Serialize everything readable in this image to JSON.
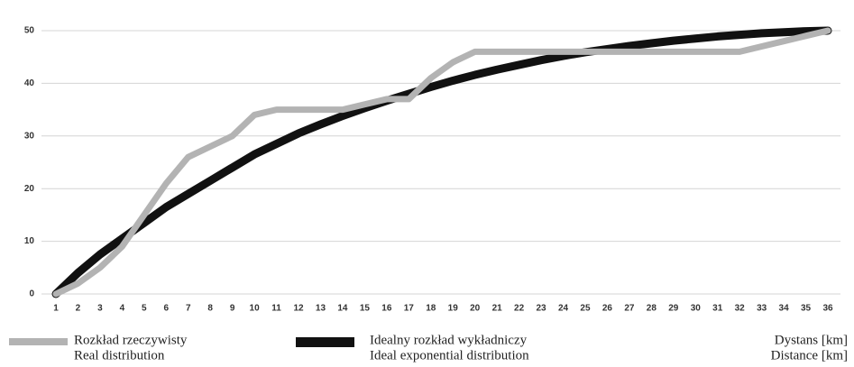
{
  "chart_data": {
    "type": "line",
    "categories": [
      "1",
      "2",
      "3",
      "4",
      "5",
      "6",
      "7",
      "8",
      "9",
      "10",
      "11",
      "12",
      "13",
      "14",
      "15",
      "16",
      "17",
      "18",
      "19",
      "20",
      "21",
      "22",
      "23",
      "24",
      "25",
      "26",
      "27",
      "28",
      "29",
      "30",
      "31",
      "32",
      "33",
      "34",
      "35",
      "36"
    ],
    "series": [
      {
        "name": [
          "Idealny rozkład wykładniczy",
          "Ideal exponential distribution"
        ],
        "color": "#111111",
        "values": [
          0,
          4,
          7.5,
          10.5,
          13.5,
          16.5,
          19,
          21.5,
          24,
          26.5,
          28.5,
          30.5,
          32.2,
          33.8,
          35.3,
          36.7,
          38,
          39.3,
          40.5,
          41.6,
          42.6,
          43.5,
          44.4,
          45.2,
          45.9,
          46.5,
          47.1,
          47.6,
          48.1,
          48.5,
          48.9,
          49.2,
          49.5,
          49.7,
          49.9,
          50
        ]
      },
      {
        "name": [
          "Rozkład rzeczywisty",
          "Real distribution"
        ],
        "color": "#b3b3b3",
        "values": [
          0,
          2,
          5,
          9,
          15,
          21,
          26,
          28,
          30,
          34,
          35,
          35,
          35,
          35,
          36,
          37,
          37,
          41,
          44,
          46,
          46,
          46,
          46,
          46,
          46,
          46,
          46,
          46,
          46,
          46,
          46,
          46,
          47,
          48,
          49,
          50
        ]
      }
    ],
    "xlabel": [
      "Dystans [km]",
      "Distance [km]"
    ],
    "ylim": [
      0,
      50
    ],
    "yticks": [
      0,
      10,
      20,
      30,
      40,
      50
    ],
    "grid": true
  }
}
